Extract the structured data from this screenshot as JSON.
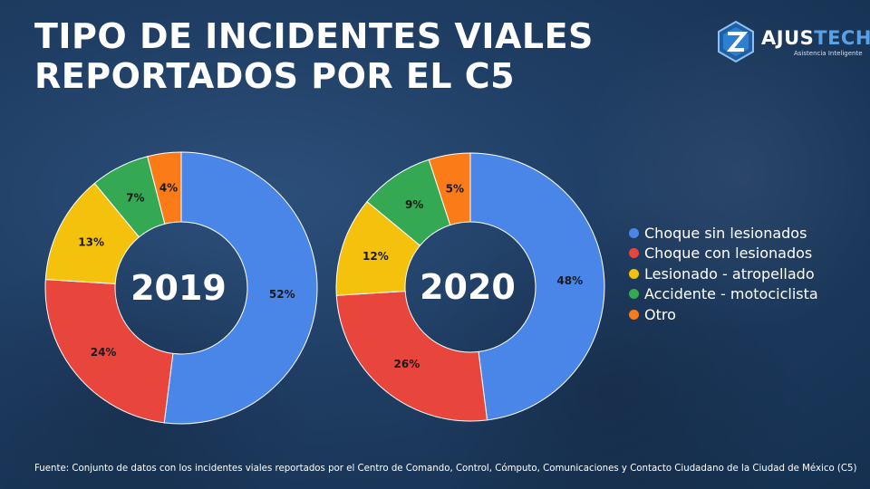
{
  "header": {
    "title_line1": "TIPO DE INCIDENTES VIALES",
    "title_line2": "REPORTADOS POR EL C5"
  },
  "logo": {
    "name_part1": "AJUS",
    "name_part2": "TECH",
    "tagline": "Asistencia Inteligente",
    "icon": "hexagon-z-icon"
  },
  "chart_data": [
    {
      "type": "pie",
      "center_label": "2019",
      "categories": [
        "Choque sin lesionados",
        "Choque con lesionados",
        "Lesionado - atropellado",
        "Accidente - motociclista",
        "Otro"
      ],
      "values": [
        52,
        24,
        13,
        7,
        4
      ],
      "value_labels": [
        "52%",
        "24%",
        "13%",
        "7%",
        "4%"
      ],
      "colors": [
        "#4a86e8",
        "#e8453c",
        "#f4c20d",
        "#34a853",
        "#fa7b17"
      ]
    },
    {
      "type": "pie",
      "center_label": "2020",
      "categories": [
        "Choque sin lesionados",
        "Choque con lesionados",
        "Lesionado - atropellado",
        "Accidente - motociclista",
        "Otro"
      ],
      "values": [
        48,
        26,
        12,
        9,
        5
      ],
      "value_labels": [
        "48%",
        "26%",
        "12%",
        "9%",
        "5%"
      ],
      "colors": [
        "#4a86e8",
        "#e8453c",
        "#f4c20d",
        "#34a853",
        "#fa7b17"
      ]
    }
  ],
  "legend": {
    "items": [
      {
        "label": "Choque sin lesionados",
        "color": "#4a86e8"
      },
      {
        "label": "Choque con lesionados",
        "color": "#e8453c"
      },
      {
        "label": "Lesionado - atropellado",
        "color": "#f4c20d"
      },
      {
        "label": "Accidente - motociclista",
        "color": "#34a853"
      },
      {
        "label": "Otro",
        "color": "#fa7b17"
      }
    ]
  },
  "footer": {
    "source": "Fuente: Conjunto de datos con los incidentes viales reportados por el Centro de Comando, Control, Cómputo, Comunicaciones y Contacto Ciudadano de la Ciudad de México (C5)"
  }
}
